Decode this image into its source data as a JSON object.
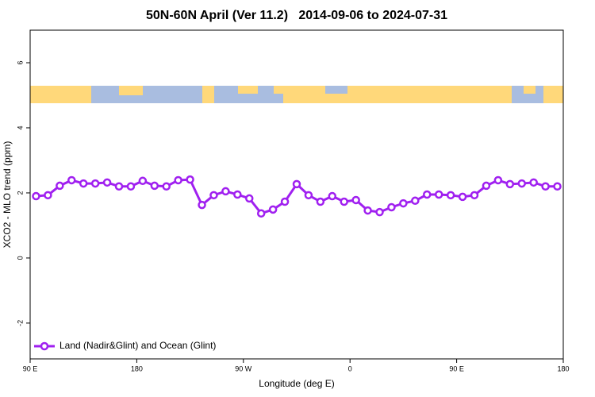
{
  "chart_data": {
    "type": "line",
    "title": "50N-60N April (Ver 11.2)   2014-09-06 to 2024-07-31",
    "x_label": "Longitude (deg E)",
    "y_label": "XCO2 - MLO trend (ppm)",
    "x": [
      95,
      105,
      115,
      125,
      135,
      145,
      155,
      165,
      175,
      185,
      195,
      205,
      215,
      225,
      235,
      245,
      255,
      265,
      275,
      285,
      295,
      305,
      315,
      325,
      335,
      345,
      355,
      365,
      375,
      385,
      395,
      405,
      415,
      425,
      435,
      445,
      455,
      465,
      475,
      485,
      495,
      505,
      515,
      525,
      535
    ],
    "series": [
      {
        "name": "Land (Nadir&Glint) and Ocean (Glint)",
        "color": "#a020f0",
        "values": [
          1.9,
          1.93,
          2.22,
          2.39,
          2.29,
          2.29,
          2.32,
          2.2,
          2.2,
          2.37,
          2.22,
          2.2,
          2.39,
          2.41,
          1.63,
          1.93,
          2.05,
          1.95,
          1.83,
          1.37,
          1.49,
          1.73,
          2.27,
          1.93,
          1.73,
          1.9,
          1.73,
          1.78,
          1.46,
          1.41,
          1.56,
          1.68,
          1.76,
          1.95,
          1.95,
          1.93,
          1.88,
          1.93,
          2.22,
          2.39,
          2.27,
          2.29,
          2.32,
          2.2,
          2.2
        ]
      }
    ],
    "xlim": [
      90,
      540
    ],
    "xticks": [
      {
        "value": 90,
        "label": "90 E"
      },
      {
        "value": 180,
        "label": "180"
      },
      {
        "value": 270,
        "label": "90 W"
      },
      {
        "value": 360,
        "label": "0"
      },
      {
        "value": 450,
        "label": "90 E"
      },
      {
        "value": 540,
        "label": "180"
      }
    ],
    "ylim": [
      -3.1,
      7.0
    ],
    "yticks": [
      -2,
      0,
      2,
      4,
      6
    ],
    "legend": "bottom-left"
  }
}
